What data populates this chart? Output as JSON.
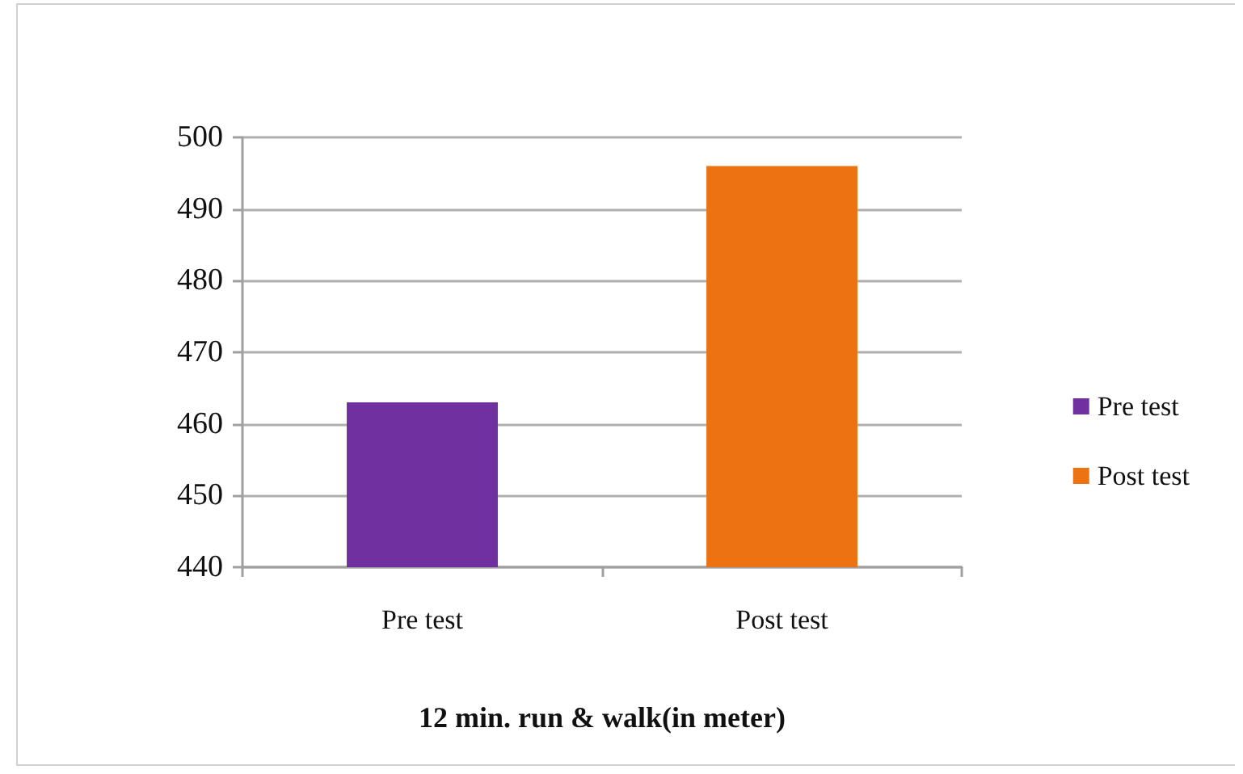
{
  "chart_data": {
    "type": "bar",
    "xlabel": "12 min. run & walk(in meter)",
    "categories": [
      "Pre test",
      "Post test"
    ],
    "series": [
      {
        "name": "Pre test",
        "color": "#7030a0",
        "values": [
          463,
          null
        ]
      },
      {
        "name": "Post test",
        "color": "#ec7212",
        "values": [
          null,
          496
        ]
      }
    ],
    "stacked": true,
    "ylim": [
      440,
      500
    ],
    "yticks": [
      440,
      450,
      460,
      470,
      480,
      490,
      500
    ],
    "grid": "y",
    "legend": "right"
  }
}
